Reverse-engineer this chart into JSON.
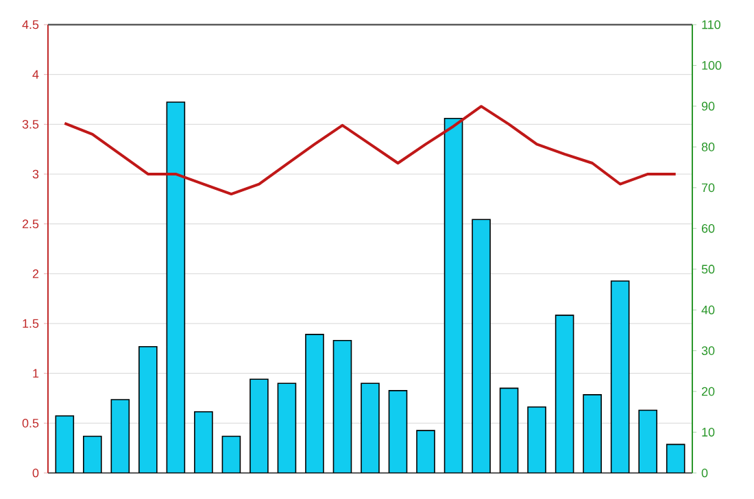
{
  "chart_data": {
    "type": "bar",
    "categories": [
      null,
      null,
      null,
      null,
      null,
      null,
      null,
      null,
      null,
      null,
      null,
      null,
      null,
      null,
      null,
      null,
      null,
      null,
      null,
      null,
      null,
      null,
      null
    ],
    "series": [
      {
        "axis": "y2",
        "color": "#11ccf0",
        "values": [
          14,
          9,
          18,
          31,
          91,
          15,
          9,
          23,
          22,
          34,
          32.5,
          22,
          20.2,
          10.4,
          87,
          62.2,
          20.8,
          16.2,
          38.7,
          19.2,
          47.1,
          15.4,
          7
        ]
      },
      {
        "type": "line",
        "color": "#c01818",
        "values": [
          3.51,
          3.4,
          3.2,
          3.0,
          3.0,
          2.9,
          2.8,
          2.9,
          3.1,
          3.3,
          3.49,
          3.3,
          3.11,
          3.3,
          3.48,
          3.68,
          3.5,
          3.3,
          3.2,
          3.11,
          2.9,
          3.0,
          3.0
        ]
      }
    ],
    "ylim": [
      0,
      4.5
    ],
    "yticks": [
      0,
      0.5,
      1,
      1.5,
      2,
      2.5,
      3,
      3.5,
      4,
      4.5
    ],
    "y2lim": [
      0,
      110
    ],
    "y2ticks": [
      0,
      10,
      20,
      30,
      40,
      50,
      60,
      70,
      80,
      90,
      100,
      110
    ],
    "grid": "y"
  }
}
